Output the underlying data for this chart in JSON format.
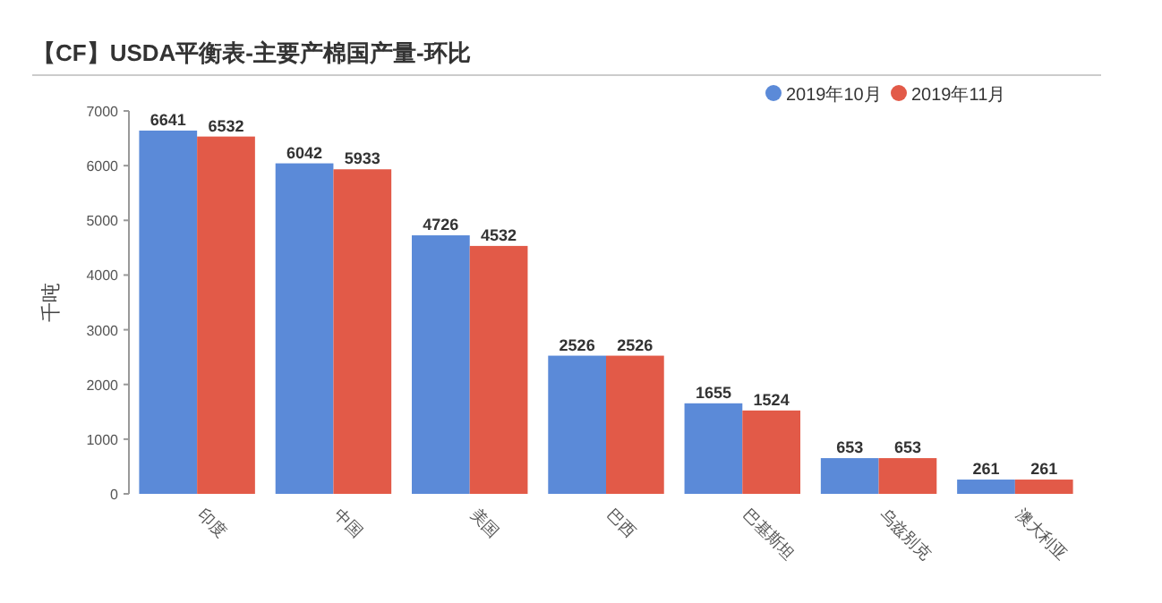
{
  "chart_data": {
    "type": "bar",
    "title": "【CF】USDA平衡表-主要产棉国产量-环比",
    "ylabel": "千吨",
    "categories": [
      "印度",
      "中国",
      "美国",
      "巴西",
      "巴基斯坦",
      "乌兹别克",
      "澳大利亚"
    ],
    "series": [
      {
        "name": "2019年10月",
        "color": "#5b8ad8",
        "values": [
          6641,
          6042,
          4726,
          2526,
          1655,
          653,
          261
        ]
      },
      {
        "name": "2019年11月",
        "color": "#e25a48",
        "values": [
          6532,
          5933,
          4532,
          2526,
          1524,
          653,
          261
        ]
      }
    ],
    "ylim": [
      0,
      7000
    ],
    "yticks": [
      0,
      1000,
      2000,
      3000,
      4000,
      5000,
      6000,
      7000
    ],
    "data_labels": true,
    "legend": "top right",
    "grid": false
  }
}
